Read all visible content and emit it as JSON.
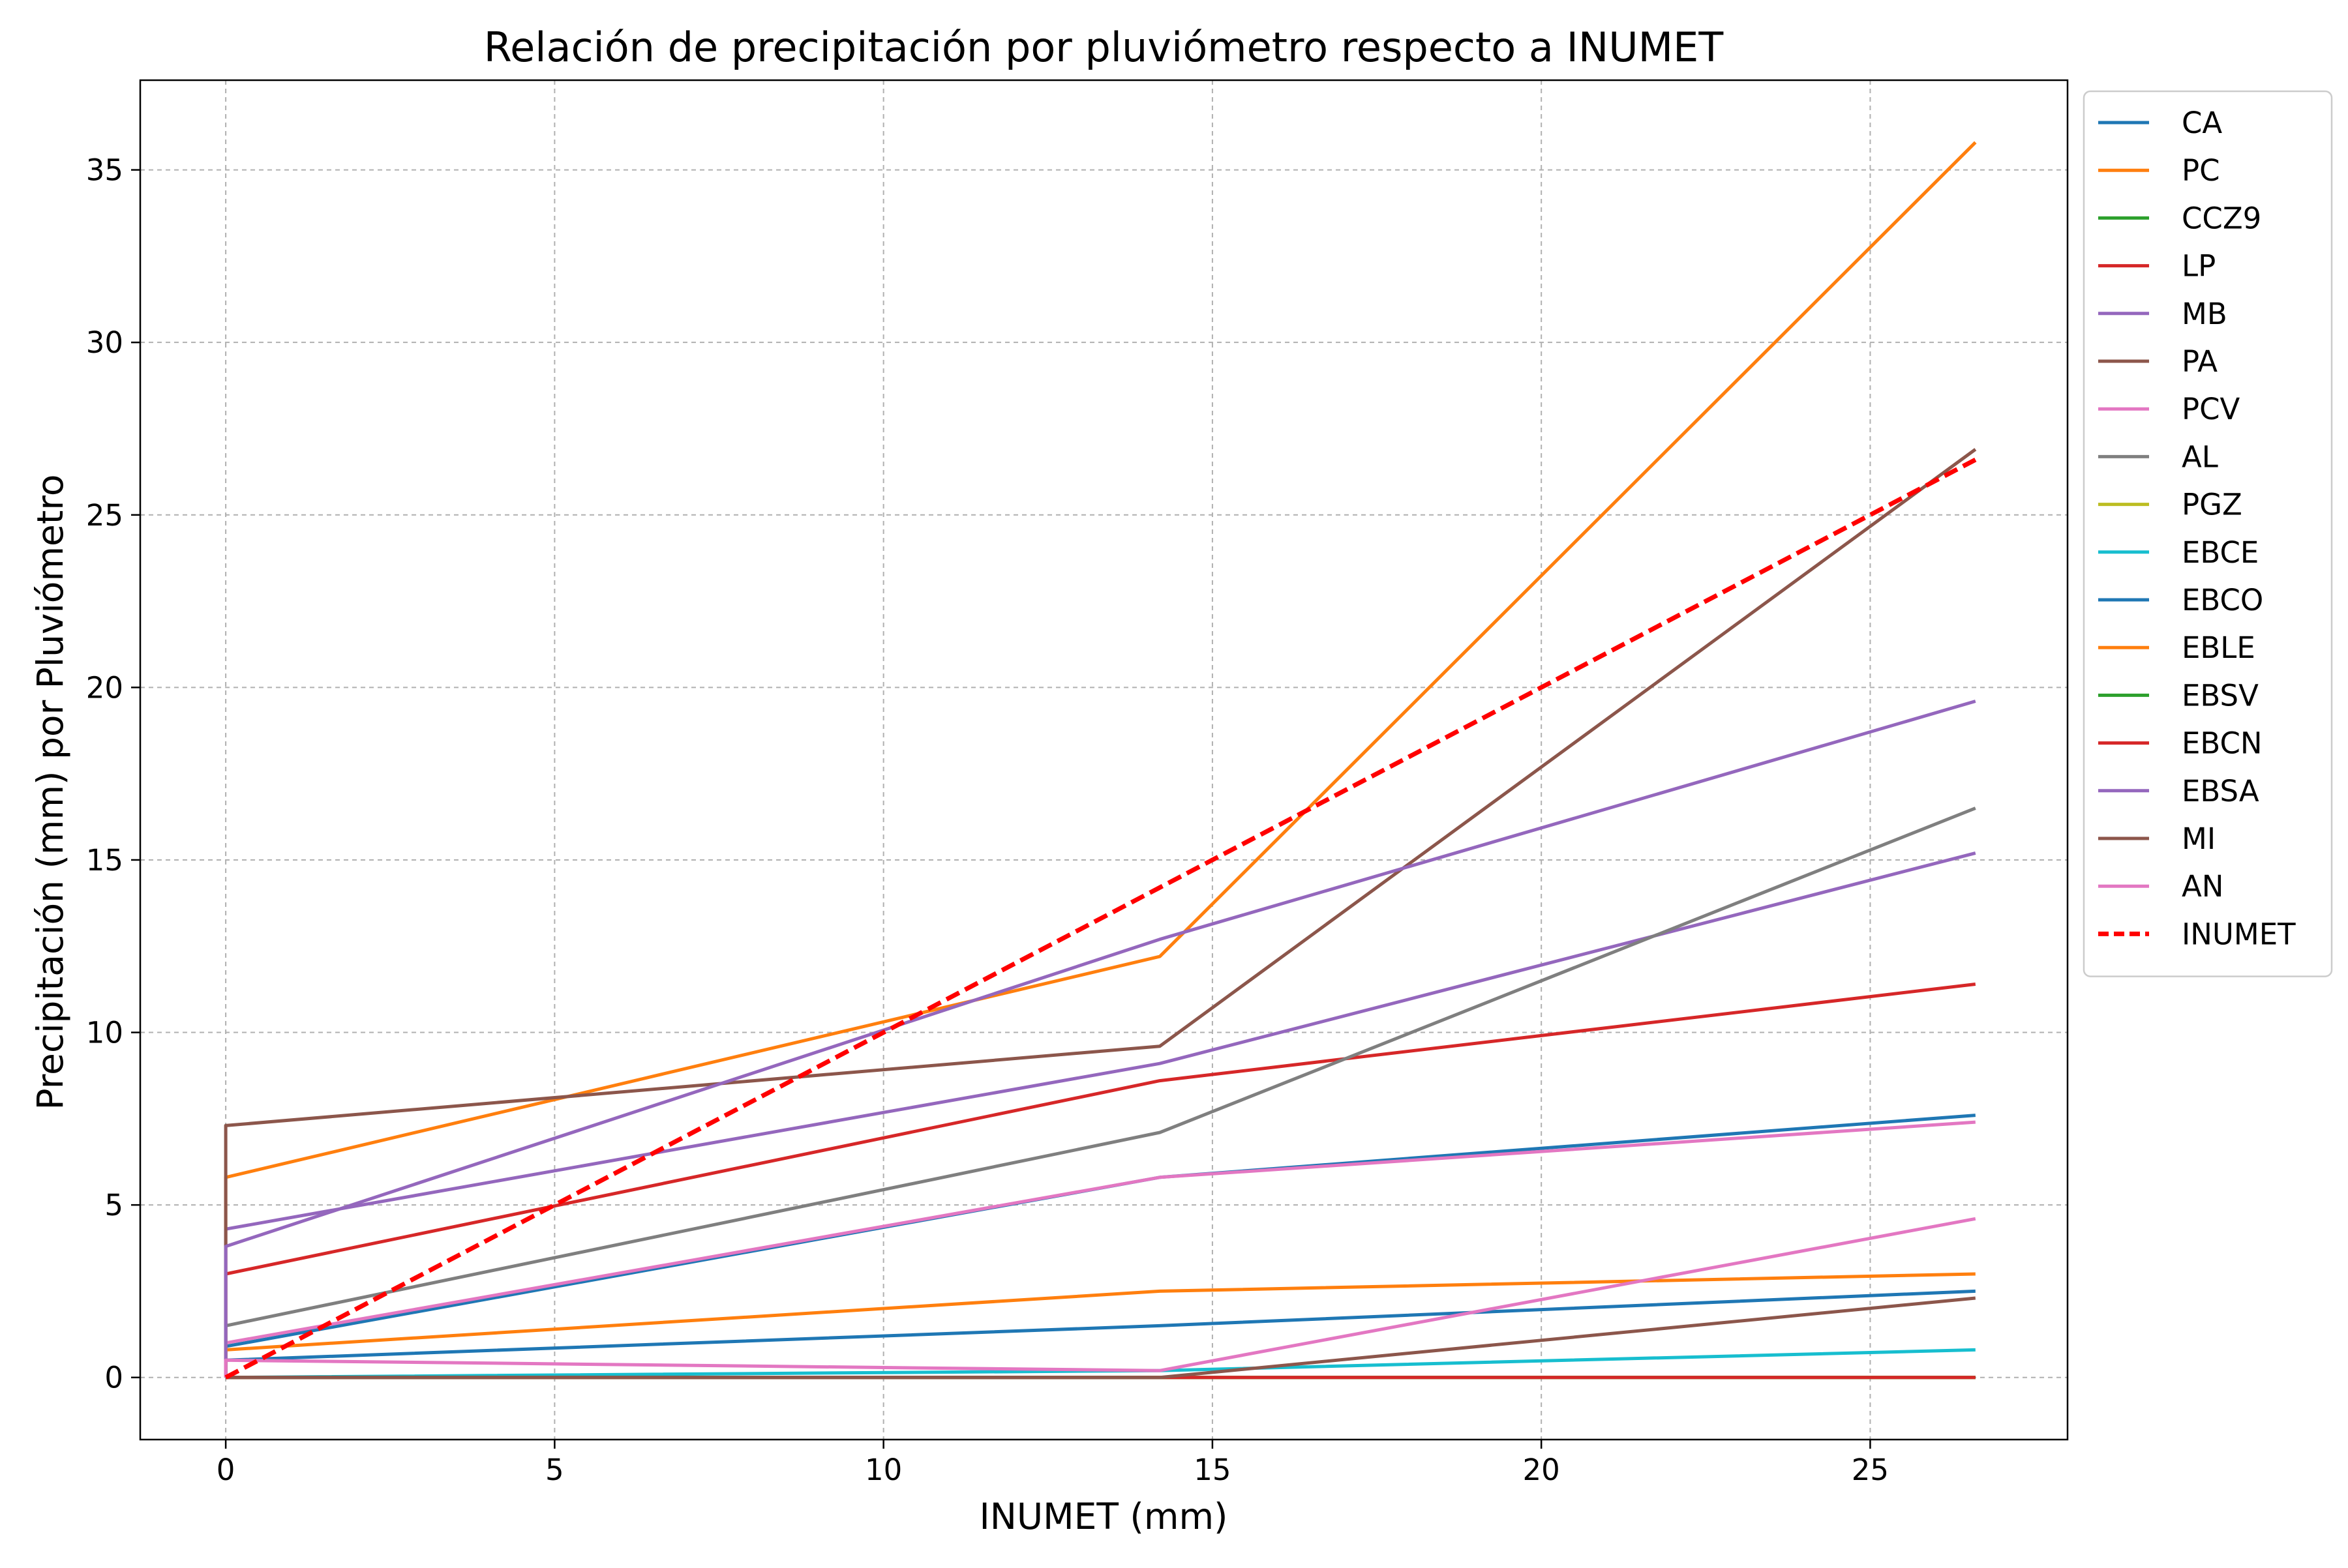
{
  "chart_data": {
    "type": "line",
    "title": "Relación de precipitación por pluviómetro respecto a INUMET",
    "xlabel": "INUMET (mm)",
    "ylabel": "Precipitación (mm) por Pluviómetro",
    "xlim": [
      -1.3,
      28.0
    ],
    "ylim": [
      -1.8,
      37.6
    ],
    "x": [
      0,
      0,
      14.2,
      26.6
    ],
    "xticks": [
      0,
      5,
      10,
      15,
      20,
      25
    ],
    "yticks": [
      0,
      5,
      10,
      15,
      20,
      25,
      30,
      35
    ],
    "grid": true,
    "legend_position": "outside-right-top",
    "series": [
      {
        "name": "CA",
        "color": "#1f77b4",
        "values": [
          0,
          0.9,
          5.8,
          7.6
        ]
      },
      {
        "name": "PC",
        "color": "#ff7f0e",
        "values": [
          0,
          5.8,
          12.2,
          35.8
        ]
      },
      {
        "name": "CCZ9",
        "color": "#2ca02c",
        "values": [
          0,
          0,
          0,
          0
        ]
      },
      {
        "name": "LP",
        "color": "#d62728",
        "values": [
          0,
          3.0,
          8.6,
          11.4
        ]
      },
      {
        "name": "MB",
        "color": "#9467bd",
        "values": [
          0,
          4.3,
          9.1,
          15.2
        ]
      },
      {
        "name": "PA",
        "color": "#8c564b",
        "values": [
          0,
          7.3,
          9.6,
          26.9
        ]
      },
      {
        "name": "PCV",
        "color": "#e377c2",
        "values": [
          0,
          1.0,
          5.8,
          7.4
        ]
      },
      {
        "name": "AL",
        "color": "#7f7f7f",
        "values": [
          0,
          1.5,
          7.1,
          16.5
        ]
      },
      {
        "name": "PGZ",
        "color": "#bcbd22",
        "values": [
          0,
          0,
          0,
          0
        ]
      },
      {
        "name": "EBCE",
        "color": "#17becf",
        "values": [
          0,
          0,
          0.2,
          0.8
        ]
      },
      {
        "name": "EBCO",
        "color": "#1f77b4",
        "values": [
          0,
          0.5,
          1.5,
          2.5
        ]
      },
      {
        "name": "EBLE",
        "color": "#ff7f0e",
        "values": [
          0,
          0.8,
          2.5,
          3.0
        ]
      },
      {
        "name": "EBSV",
        "color": "#2ca02c",
        "values": [
          0,
          0,
          0,
          0
        ]
      },
      {
        "name": "EBCN",
        "color": "#d62728",
        "values": [
          0,
          0,
          0,
          0
        ]
      },
      {
        "name": "EBSA",
        "color": "#9467bd",
        "values": [
          0,
          3.8,
          12.7,
          19.6
        ]
      },
      {
        "name": "MI",
        "color": "#8c564b",
        "values": [
          0,
          0,
          0,
          2.3
        ]
      },
      {
        "name": "AN",
        "color": "#e377c2",
        "values": [
          0,
          0.5,
          0.2,
          4.6
        ]
      },
      {
        "name": "INUMET",
        "color": "#ff0000",
        "dashed": true,
        "x": [
          0,
          26.6
        ],
        "values": [
          0,
          26.6
        ]
      }
    ]
  }
}
